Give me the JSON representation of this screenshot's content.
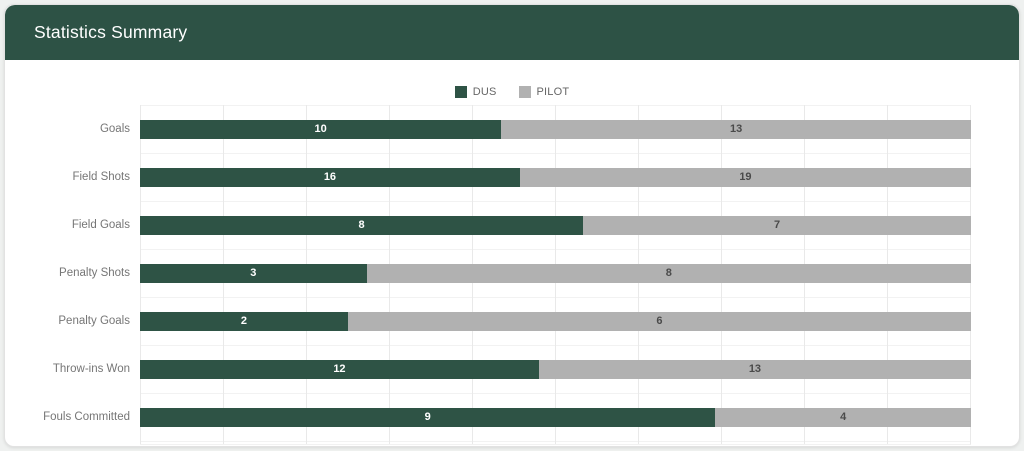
{
  "header": {
    "title": "Statistics Summary"
  },
  "colors": {
    "header_bg": "#2d5245",
    "dus_bar": "#2e5345",
    "pilot_bar": "#b1b1b1",
    "card_bg": "#ffffff",
    "grid_vertical": "#e9e9e9",
    "grid_horizontal": "#f2f2f2",
    "category_label": "#767676",
    "legend_text": "#666666"
  },
  "chart_data": {
    "type": "bar",
    "orientation": "horizontal",
    "stacked": true,
    "normalized_to_100_percent": true,
    "title": "Statistics Summary",
    "categories": [
      "Goals",
      "Field Shots",
      "Field Goals",
      "Penalty Shots",
      "Penalty Goals",
      "Throw-ins Won",
      "Fouls Committed"
    ],
    "series": [
      {
        "name": "DUS",
        "color": "#2e5345",
        "values": [
          10,
          16,
          8,
          3,
          2,
          12,
          9
        ]
      },
      {
        "name": "PILOT",
        "color": "#b1b1b1",
        "values": [
          13,
          19,
          7,
          8,
          6,
          13,
          4
        ]
      }
    ],
    "legend_position": "top-center",
    "grid": true,
    "gridline_step_percent": 10,
    "xlabel": "",
    "ylabel": ""
  }
}
